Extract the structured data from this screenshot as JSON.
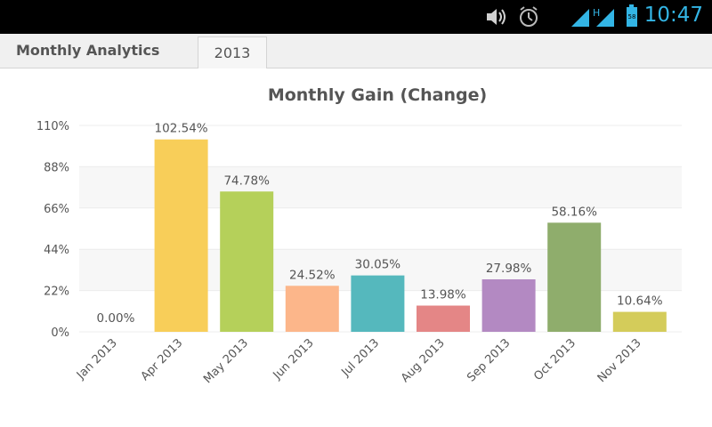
{
  "status_bar": {
    "time": "10:47",
    "battery_level": "58",
    "network_label": "H",
    "icons": [
      "volume-icon",
      "alarm-icon",
      "signal-icon",
      "battery-icon"
    ]
  },
  "tabs": [
    {
      "label": "Monthly Analytics"
    },
    {
      "label": "2013"
    }
  ],
  "chart_data": {
    "type": "bar",
    "title": "Monthly Gain (Change)",
    "categories": [
      "Jan 2013",
      "Apr 2013",
      "May 2013",
      "Jun 2013",
      "Jul 2013",
      "Aug 2013",
      "Sep 2013",
      "Oct 2013",
      "Nov 2013"
    ],
    "values": [
      0.0,
      102.54,
      74.78,
      24.52,
      30.05,
      13.98,
      27.98,
      58.16,
      10.64
    ],
    "value_labels": [
      "0.00%",
      "102.54%",
      "74.78%",
      "24.52%",
      "30.05%",
      "13.98%",
      "27.98%",
      "58.16%",
      "10.64%"
    ],
    "colors": [
      "#cccccc",
      "#f8ce59",
      "#b5d05a",
      "#fcb68a",
      "#55b8bd",
      "#e48686",
      "#b389c2",
      "#8fad6c",
      "#d4cc5a"
    ],
    "yticks": [
      0,
      22,
      44,
      66,
      88,
      110
    ],
    "ytick_labels": [
      "0%",
      "22%",
      "44%",
      "66%",
      "88%",
      "110%"
    ],
    "ylim": [
      0,
      110
    ],
    "xlabel": "",
    "ylabel": ""
  }
}
